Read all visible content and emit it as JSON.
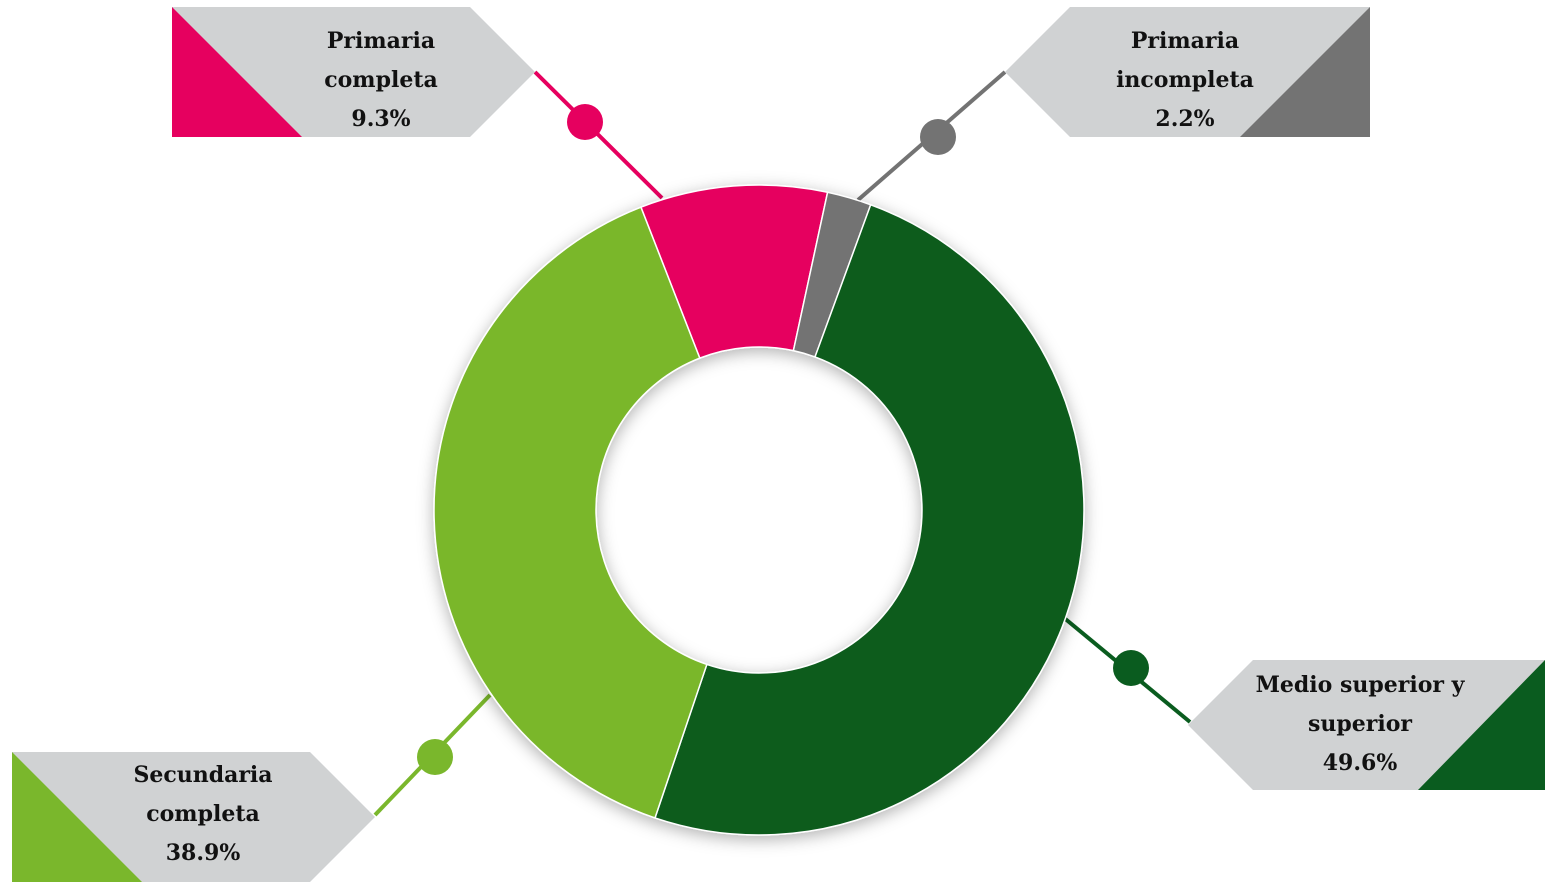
{
  "chart_data": {
    "type": "donut",
    "categories": [
      "Primaria completa",
      "Primaria incompleta",
      "Medio superior y superior",
      "Secundaria completa"
    ],
    "values": [
      9.3,
      2.2,
      49.6,
      38.9
    ],
    "value_labels": [
      "9.3%",
      "2.2%",
      "49.6%",
      "38.9%"
    ],
    "colors": [
      "#e6005f",
      "#737373",
      "#0a5c1f",
      "#7ab72c"
    ]
  }
}
